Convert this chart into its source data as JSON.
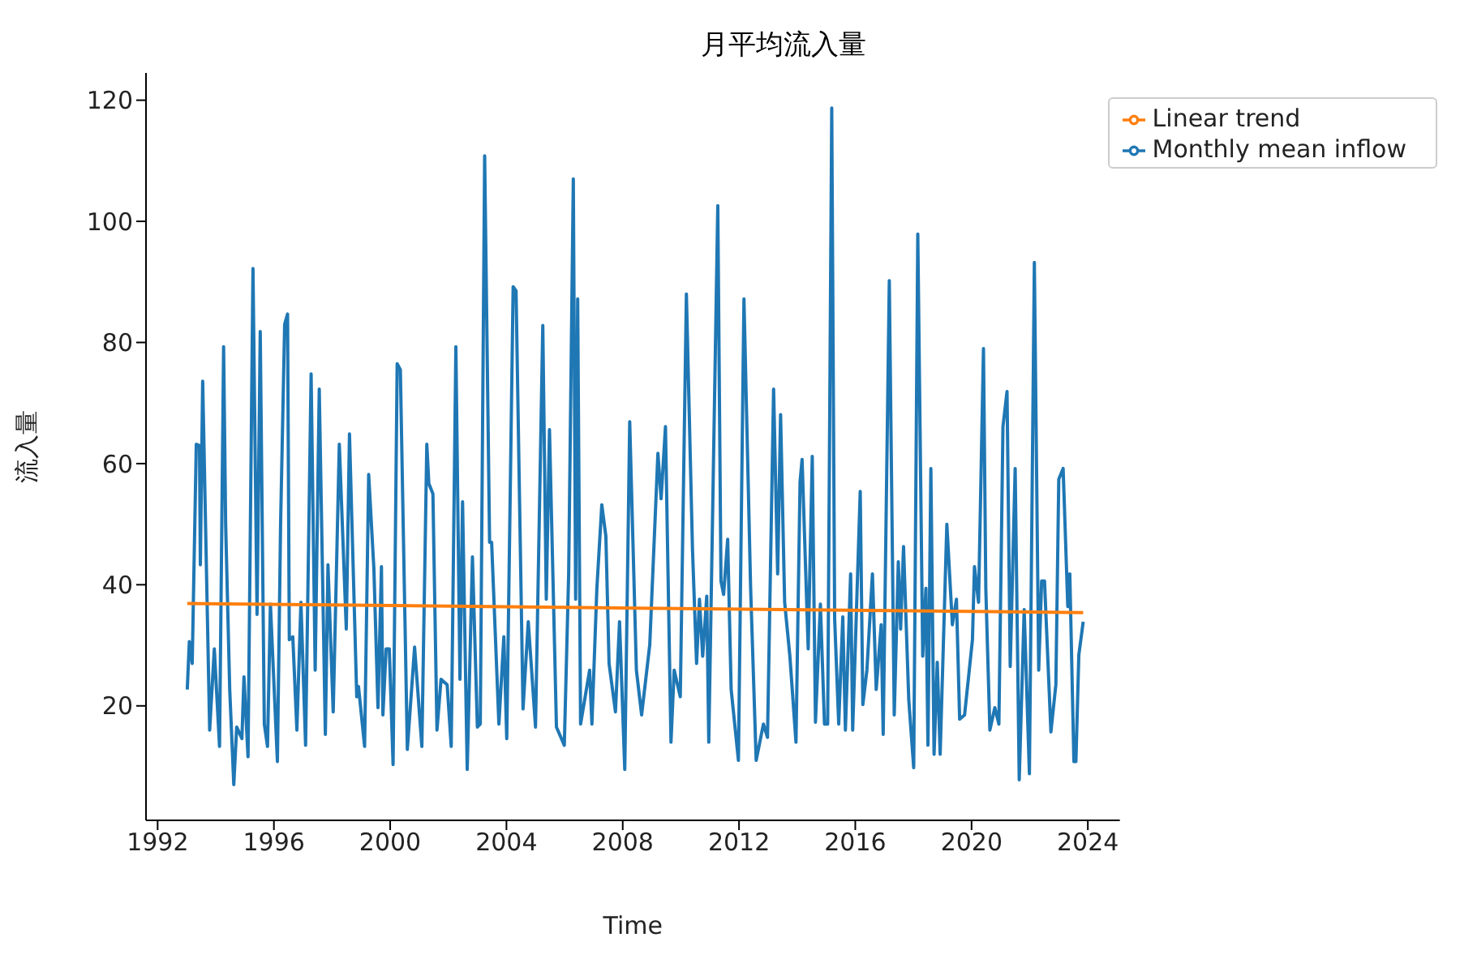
{
  "chart_data": {
    "type": "line",
    "title": "月平均流入量",
    "xlabel": "Time",
    "ylabel": "流入量",
    "xlim": [
      1991.6,
      2025.1
    ],
    "xticks": [
      1992,
      1996,
      2000,
      2004,
      2008,
      2012,
      2016,
      2020,
      2024
    ],
    "ylim": [
      1.1,
      124.5
    ],
    "yticks": [
      20,
      40,
      60,
      80,
      100,
      120
    ],
    "legend": "top right",
    "marker": "none",
    "line_style": "solid",
    "series": [
      {
        "name": "Monthly mean inflow",
        "color": "#1f77b4",
        "x": [
          1993.02,
          1993.09,
          1993.19,
          1993.33,
          1993.44,
          1993.47,
          1993.55,
          1993.79,
          1993.95,
          1994.13,
          1994.27,
          1994.34,
          1994.48,
          1994.62,
          1994.72,
          1994.9,
          1994.97,
          1995.11,
          1995.28,
          1995.42,
          1995.53,
          1995.67,
          1995.78,
          1995.88,
          1996.12,
          1996.23,
          1996.37,
          1996.47,
          1996.53,
          1996.65,
          1996.79,
          1996.93,
          1997.09,
          1997.28,
          1997.42,
          1997.56,
          1997.77,
          1997.86,
          1998.04,
          1998.25,
          1998.49,
          1998.6,
          1998.85,
          1998.91,
          1999.12,
          1999.26,
          1999.44,
          1999.58,
          1999.7,
          1999.75,
          1999.86,
          1999.97,
          2000.1,
          2000.24,
          2000.35,
          2000.59,
          2000.84,
          2001.09,
          2001.26,
          2001.33,
          2001.47,
          2001.61,
          2001.75,
          2001.96,
          2002.1,
          2002.26,
          2002.4,
          2002.49,
          2002.65,
          2002.83,
          2003.0,
          2003.1,
          2003.25,
          2003.42,
          2003.49,
          2003.74,
          2003.91,
          2004.01,
          2004.23,
          2004.33,
          2004.57,
          2004.75,
          2005.0,
          2005.25,
          2005.37,
          2005.48,
          2005.72,
          2005.99,
          2006.14,
          2006.3,
          2006.38,
          2006.45,
          2006.55,
          2006.69,
          2006.86,
          2006.94,
          2007.11,
          2007.28,
          2007.42,
          2007.53,
          2007.75,
          2007.89,
          2008.07,
          2008.24,
          2008.47,
          2008.65,
          2008.93,
          2009.21,
          2009.32,
          2009.47,
          2009.66,
          2009.77,
          2009.98,
          2010.19,
          2010.4,
          2010.54,
          2010.64,
          2010.75,
          2010.89,
          2010.96,
          2011.27,
          2011.38,
          2011.47,
          2011.61,
          2011.73,
          2011.98,
          2012.17,
          2012.4,
          2012.59,
          2012.84,
          2012.98,
          2013.19,
          2013.33,
          2013.43,
          2013.57,
          2013.75,
          2013.96,
          2014.1,
          2014.17,
          2014.38,
          2014.52,
          2014.63,
          2014.8,
          2014.94,
          2015.05,
          2015.19,
          2015.29,
          2015.43,
          2015.57,
          2015.66,
          2015.84,
          2015.91,
          2016.17,
          2016.26,
          2016.4,
          2016.59,
          2016.72,
          2016.89,
          2016.96,
          2017.17,
          2017.34,
          2017.48,
          2017.56,
          2017.66,
          2017.84,
          2018.01,
          2018.15,
          2018.32,
          2018.43,
          2018.5,
          2018.6,
          2018.71,
          2018.82,
          2018.92,
          2019.15,
          2019.34,
          2019.48,
          2019.59,
          2019.76,
          2020.03,
          2020.1,
          2020.24,
          2020.41,
          2020.49,
          2020.63,
          2020.8,
          2020.94,
          2021.08,
          2021.22,
          2021.33,
          2021.5,
          2021.64,
          2021.81,
          2021.99,
          2022.16,
          2022.31,
          2022.41,
          2022.51,
          2022.73,
          2022.9,
          2023.0,
          2023.15,
          2023.31,
          2023.38,
          2023.52,
          2023.59,
          2023.69,
          2023.84
        ],
        "values": [
          22.7,
          30.6,
          27,
          63.2,
          63,
          43.3,
          73.6,
          16,
          29.4,
          13.3,
          79.3,
          50,
          22.7,
          7,
          16.5,
          14.6,
          24.8,
          11.6,
          92.2,
          35.1,
          81.8,
          17,
          13.3,
          36.8,
          10.8,
          50,
          83,
          84.7,
          30.9,
          31.4,
          16,
          37.1,
          13.5,
          74.8,
          25.9,
          72.3,
          15.3,
          43.3,
          19,
          63.2,
          32.7,
          64.9,
          21.5,
          23.2,
          13.3,
          58.2,
          42.6,
          19.7,
          43,
          18.5,
          29.4,
          29.4,
          10.3,
          76.5,
          75.5,
          12.8,
          29.7,
          13.3,
          63.2,
          56.7,
          55,
          16,
          24.4,
          23.5,
          13.3,
          79.3,
          24.4,
          53.7,
          9.5,
          44.6,
          16.5,
          17,
          110.8,
          47,
          47,
          17,
          31.4,
          14.6,
          89.2,
          88.5,
          19.5,
          33.9,
          16.5,
          82.8,
          37.6,
          65.6,
          16.5,
          13.5,
          41.8,
          107,
          37.6,
          87.2,
          17,
          21,
          25.9,
          17,
          39.4,
          53.2,
          48,
          27,
          19,
          33.9,
          9.5,
          66.9,
          25.9,
          18.5,
          30.1,
          61.7,
          54.2,
          66.1,
          14,
          25.9,
          21.5,
          88,
          45.8,
          27,
          37.6,
          28.2,
          38.1,
          14,
          102.6,
          40.6,
          38.4,
          47.5,
          22.7,
          11,
          87.2,
          39.4,
          11,
          17,
          14.8,
          72.3,
          41.8,
          68.1,
          37.1,
          28.2,
          14,
          57,
          60.7,
          29.4,
          61.2,
          17.3,
          36.8,
          17,
          17,
          118.7,
          34.4,
          17,
          34.7,
          16,
          41.8,
          16,
          55.4,
          20.2,
          25.9,
          41.8,
          22.7,
          33.4,
          15.3,
          90.2,
          18.5,
          43.8,
          32.7,
          46.3,
          21,
          9.8,
          97.9,
          28.2,
          39.4,
          13.5,
          59.2,
          12,
          27.2,
          12,
          50,
          33.4,
          37.6,
          17.8,
          18.5,
          30.9,
          43,
          37.1,
          79,
          39.4,
          16,
          19.7,
          17,
          66.1,
          71.9,
          26.5,
          59.2,
          7.8,
          35.9,
          8.8,
          93.2,
          25.9,
          40.6,
          40.6,
          15.7,
          23.5,
          57.4,
          59.2,
          36.4,
          41.8,
          10.8,
          10.8,
          28.4,
          33.9
        ]
      },
      {
        "name": "Linear trend",
        "color": "#ff7f0e",
        "type": "line",
        "x": [
          1993.02,
          2023.84
        ],
        "values": [
          36.9,
          35.4
        ]
      }
    ]
  }
}
